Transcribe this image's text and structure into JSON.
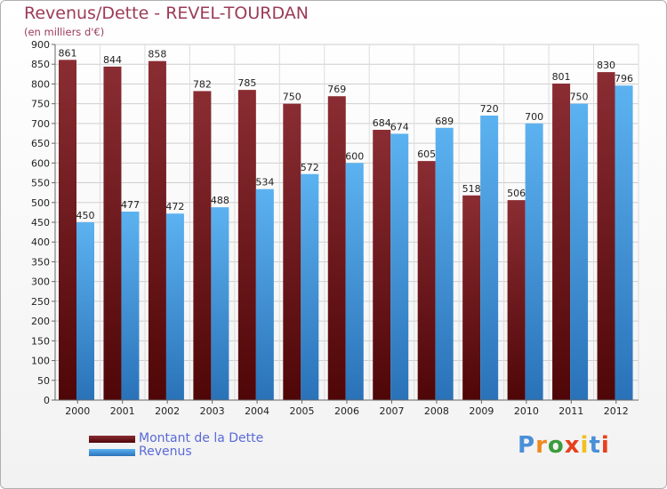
{
  "chart_data": {
    "type": "bar",
    "title": "Revenus/Dette - REVEL-TOURDAN",
    "subtitle": "(en milliers d'€)",
    "categories": [
      "2000",
      "2001",
      "2002",
      "2003",
      "2004",
      "2005",
      "2006",
      "2007",
      "2008",
      "2009",
      "2010",
      "2011",
      "2012"
    ],
    "series": [
      {
        "name": "Montant de la Dette",
        "color": "#7a1e22",
        "values": [
          861,
          844,
          858,
          782,
          785,
          750,
          769,
          684,
          605,
          518,
          506,
          801,
          830
        ]
      },
      {
        "name": "Revenus",
        "color": "#4aa3e8",
        "values": [
          450,
          477,
          472,
          488,
          534,
          572,
          600,
          674,
          689,
          720,
          700,
          750,
          796
        ]
      }
    ],
    "ylim": [
      0,
      900
    ],
    "ytick_step": 50,
    "grid": true,
    "legend": "bottom-left"
  },
  "logo": {
    "text": "Proxiti",
    "colors": [
      "#4a8fd8",
      "#f08a1e",
      "#3c9c3c",
      "#e8401c",
      "#f0c020",
      "#4a8fd8",
      "#e8401c"
    ]
  }
}
